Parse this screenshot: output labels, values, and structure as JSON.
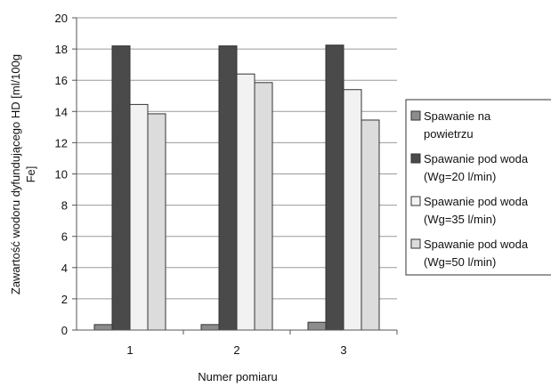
{
  "chart_data": {
    "type": "bar",
    "title": "",
    "xlabel": "Numer pomiaru",
    "ylabel": "Zawartość wodoru dyfundującego HD [ml/100g Fe]",
    "ylabel_lines": [
      "Zawartość wodoru dyfundującego HD [ml/100g",
      "Fe]"
    ],
    "categories": [
      "1",
      "2",
      "3"
    ],
    "ylim": [
      0,
      20
    ],
    "yticks": [
      "0",
      "2",
      "4",
      "6",
      "8",
      "10",
      "12",
      "14",
      "16",
      "18",
      "20"
    ],
    "grid": true,
    "legend_position": "right",
    "series": [
      {
        "name": "Spawanie na powietrzu",
        "legend_lines": [
          "Spawanie na",
          "powietrzu"
        ],
        "color": "#8c8c8c",
        "values": [
          0.35,
          0.35,
          0.5
        ]
      },
      {
        "name": "Spawanie pod wodą (Wg=20 l/min)",
        "legend_lines": [
          "Spawanie pod woda",
          "(Wg=20 l/min)"
        ],
        "color": "#4a4a4a",
        "values": [
          18.2,
          18.2,
          18.25
        ]
      },
      {
        "name": "Spawanie pod wodą (Wg=35 l/min)",
        "legend_lines": [
          "Spawanie pod woda",
          "(Wg=35 l/min)"
        ],
        "color": "#f2f2f2",
        "values": [
          14.45,
          16.4,
          15.4
        ]
      },
      {
        "name": "Spawanie pod wodą (Wg=50 l/min)",
        "legend_lines": [
          "Spawanie pod woda",
          "(Wg=50 l/min)"
        ],
        "color": "#dcdcdc",
        "values": [
          13.85,
          15.85,
          13.45
        ]
      }
    ]
  }
}
